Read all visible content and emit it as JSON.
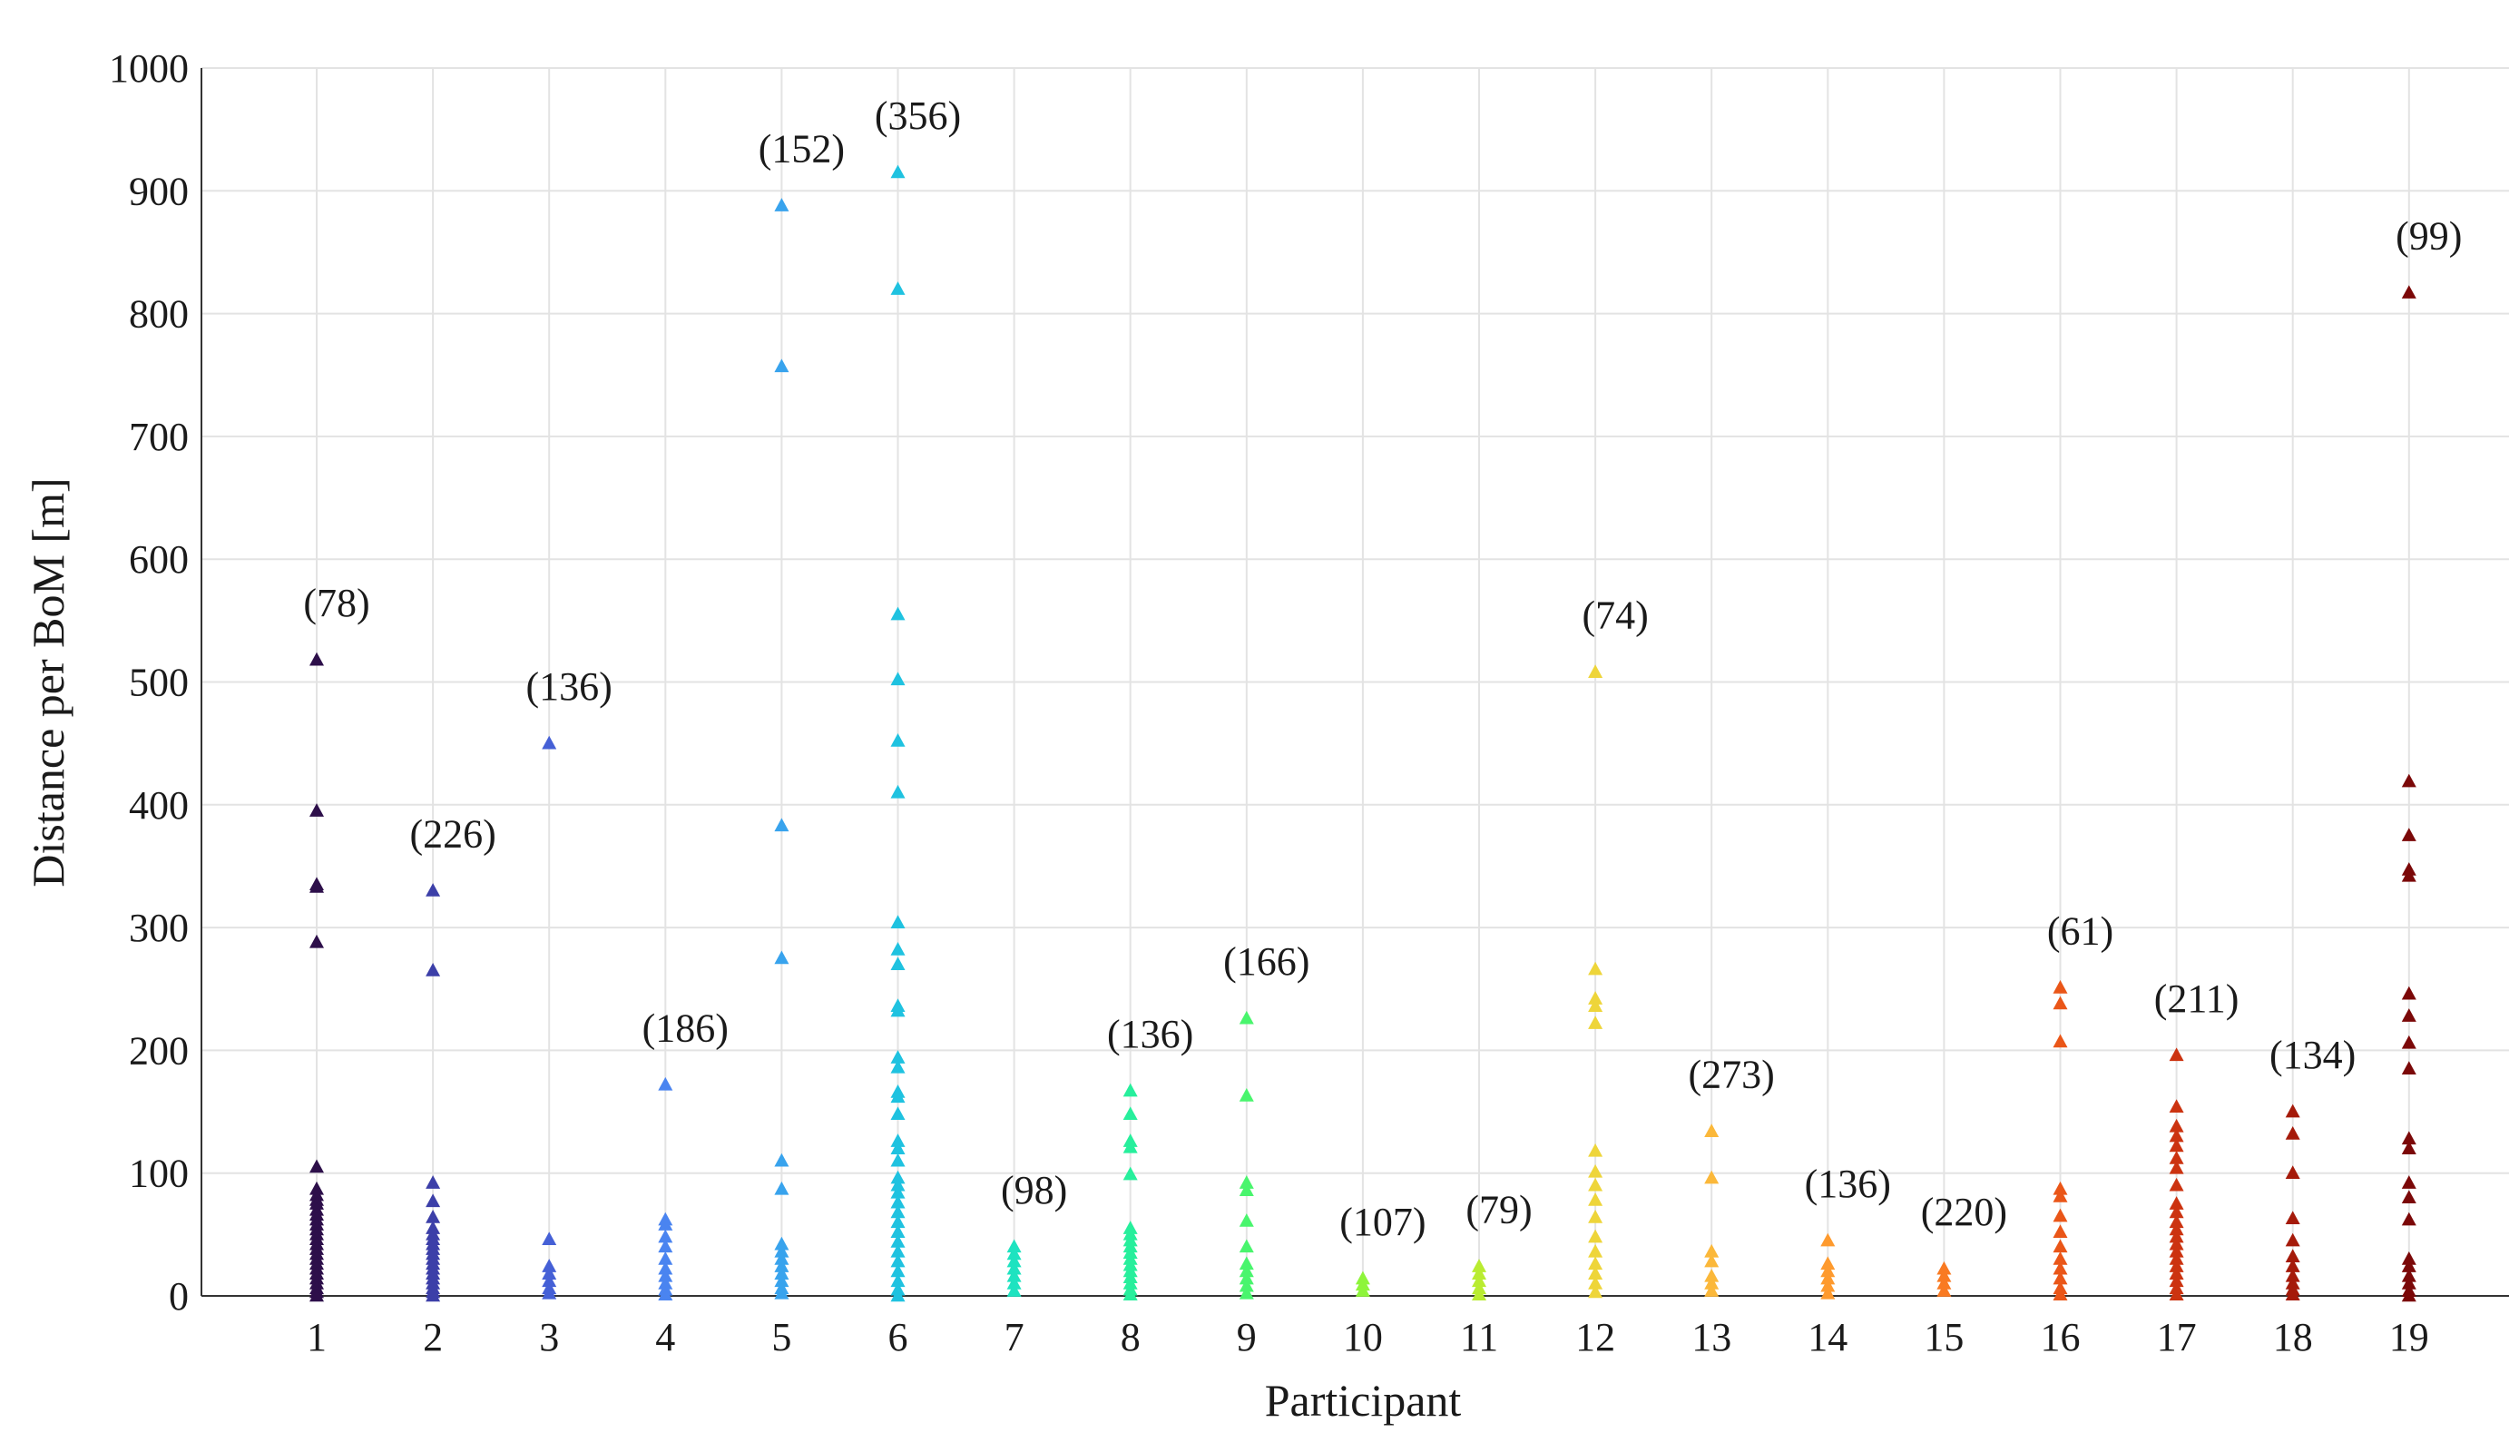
{
  "chart_data": {
    "type": "scatter",
    "marker": "triangle",
    "title": "",
    "xlabel": "Participant",
    "ylabel": "Distance per BoM [m]",
    "ylim": [
      0,
      1000
    ],
    "yticks": [
      "0",
      "100",
      "200",
      "300",
      "400",
      "500",
      "600",
      "700",
      "800",
      "900",
      "1000"
    ],
    "grid": true,
    "series": [
      {
        "participant": "1",
        "count_label": "(78)",
        "color": "#2d0f4a",
        "values": [
          518,
          395,
          335,
          333,
          288,
          105,
          87,
          82,
          78,
          75,
          70,
          66,
          62,
          58,
          54,
          50,
          46,
          42,
          38,
          34,
          30,
          26,
          22,
          18,
          14,
          10,
          6,
          3,
          0
        ]
      },
      {
        "participant": "2",
        "count_label": "(226)",
        "color": "#3c3fa8",
        "values": [
          330,
          265,
          92,
          77,
          64,
          55,
          50,
          46,
          42,
          38,
          34,
          30,
          26,
          22,
          18,
          14,
          10,
          6,
          3,
          0
        ]
      },
      {
        "participant": "3",
        "count_label": "(136)",
        "color": "#4560d6",
        "values": [
          450,
          46,
          24,
          18,
          12,
          6,
          2
        ]
      },
      {
        "participant": "4",
        "count_label": "(186)",
        "color": "#4a84f0",
        "values": [
          172,
          62,
          58,
          48,
          40,
          30,
          22,
          16,
          10,
          5,
          1
        ]
      },
      {
        "participant": "5",
        "count_label": "(152)",
        "color": "#38a3ed",
        "values": [
          888,
          757,
          383,
          275,
          110,
          87,
          42,
          36,
          30,
          24,
          18,
          12,
          6,
          2
        ]
      },
      {
        "participant": "6",
        "count_label": "(356)",
        "color": "#1fc2e0",
        "values": [
          915,
          820,
          555,
          502,
          452,
          410,
          304,
          282,
          270,
          236,
          232,
          194,
          186,
          166,
          162,
          148,
          126,
          120,
          110,
          96,
          90,
          84,
          76,
          68,
          60,
          52,
          44,
          36,
          28,
          20,
          12,
          5,
          0
        ]
      },
      {
        "participant": "7",
        "count_label": "(98)",
        "color": "#1ee3c0",
        "values": [
          40,
          34,
          28,
          22,
          16,
          10,
          4
        ]
      },
      {
        "participant": "8",
        "count_label": "(136)",
        "color": "#27ef9c",
        "values": [
          167,
          148,
          126,
          121,
          99,
          55,
          50,
          45,
          40,
          35,
          30,
          25,
          20,
          15,
          10,
          5,
          1
        ]
      },
      {
        "participant": "9",
        "count_label": "(166)",
        "color": "#49f56d",
        "values": [
          226,
          163,
          92,
          86,
          61,
          40,
          26,
          20,
          14,
          8,
          2
        ]
      },
      {
        "participant": "10",
        "count_label": "(107)",
        "color": "#8ef53a",
        "values": [
          14,
          9,
          4
        ]
      },
      {
        "participant": "11",
        "count_label": "(79)",
        "color": "#b9ec31",
        "values": [
          24,
          18,
          12,
          6,
          1
        ]
      },
      {
        "participant": "12",
        "count_label": "(74)",
        "color": "#eed53a",
        "values": [
          508,
          266,
          242,
          236,
          222,
          118,
          101,
          90,
          78,
          64,
          48,
          36,
          26,
          18,
          10,
          3
        ]
      },
      {
        "participant": "13",
        "count_label": "(273)",
        "color": "#fbb83a",
        "values": [
          134,
          96,
          36,
          28,
          16,
          10,
          4
        ]
      },
      {
        "participant": "14",
        "count_label": "(136)",
        "color": "#fe9a2e",
        "values": [
          45,
          26,
          20,
          14,
          8,
          2
        ]
      },
      {
        "participant": "15",
        "count_label": "(220)",
        "color": "#f97a22",
        "values": [
          22,
          16,
          10,
          4
        ]
      },
      {
        "participant": "16",
        "count_label": "(61)",
        "color": "#ea5618",
        "values": [
          251,
          238,
          207,
          87,
          81,
          65,
          52,
          40,
          30,
          22,
          14,
          6,
          1
        ]
      },
      {
        "participant": "17",
        "count_label": "(211)",
        "color": "#cc3310",
        "values": [
          196,
          154,
          138,
          130,
          122,
          112,
          104,
          90,
          75,
          68,
          60,
          54,
          48,
          42,
          36,
          30,
          24,
          18,
          12,
          6,
          1
        ]
      },
      {
        "participant": "18",
        "count_label": "(134)",
        "color": "#a51a0a",
        "values": [
          150,
          132,
          100,
          63,
          45,
          32,
          24,
          16,
          10,
          5,
          1
        ]
      },
      {
        "participant": "19",
        "count_label": "(99)",
        "color": "#7b0808",
        "values": [
          817,
          419,
          375,
          347,
          342,
          246,
          228,
          206,
          185,
          128,
          120,
          92,
          80,
          62,
          30,
          24,
          16,
          10,
          4,
          0
        ]
      }
    ]
  }
}
